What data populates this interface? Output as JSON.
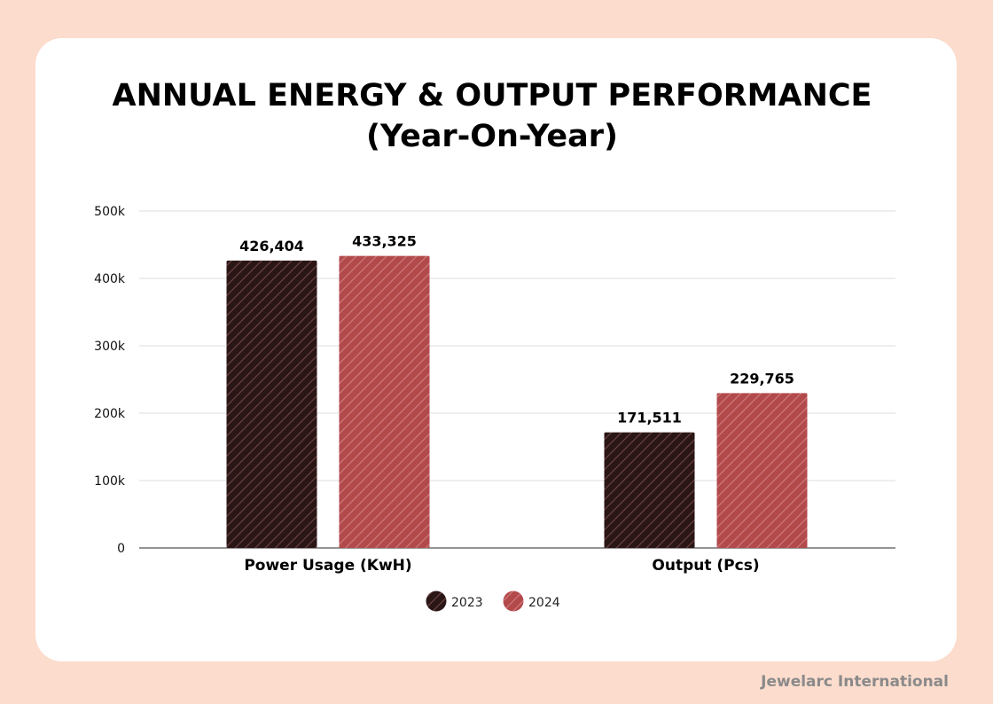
{
  "title_line1": "ANNUAL ENERGY & OUTPUT PERFORMANCE",
  "title_line2": "(Year-On-Year)",
  "brand": "Jewelarc International",
  "colors": {
    "background": "#fcdccd",
    "card": "#ffffff",
    "series_2023": "#2b1616",
    "series_2024": "#b24a4c",
    "gridline": "#dcdcdc",
    "axis": "#555555"
  },
  "chart_data": {
    "type": "bar",
    "categories": [
      "Power Usage (KwH)",
      "Output (Pcs)"
    ],
    "series": [
      {
        "name": "2023",
        "values": [
          426404,
          171511
        ],
        "labels": [
          "426,404",
          "171,511"
        ],
        "color": "#2b1616"
      },
      {
        "name": "2024",
        "values": [
          433325,
          229765
        ],
        "labels": [
          "433,325",
          "229,765"
        ],
        "color": "#b24a4c"
      }
    ],
    "yticks": [
      0,
      100000,
      200000,
      300000,
      400000,
      500000
    ],
    "ytick_labels": [
      "0",
      "100k",
      "200k",
      "300k",
      "400k",
      "500k"
    ],
    "ylim": [
      0,
      500000
    ],
    "grid": true,
    "legend": "bottom-center",
    "title": "ANNUAL ENERGY & OUTPUT PERFORMANCE (Year-On-Year)",
    "xlabel": "",
    "ylabel": ""
  }
}
